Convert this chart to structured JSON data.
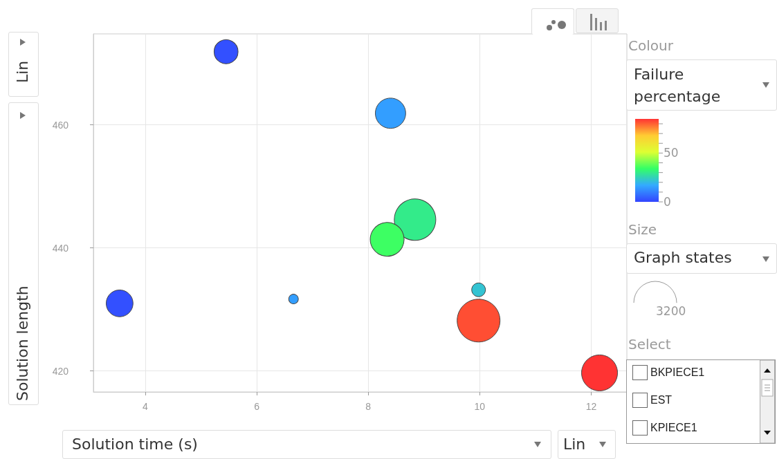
{
  "chart_data": {
    "type": "bubble",
    "xlabel": "Solution time (s)",
    "ylabel": "Solution length",
    "clabel": "Failure percentage",
    "x": [
      5.45,
      8.4,
      8.84,
      8.34,
      9.98,
      9.98,
      12.15,
      3.54,
      6.66
    ],
    "values": [
      471.9,
      461.9,
      444.6,
      441.4,
      433.2,
      428.2,
      419.7,
      431.0,
      431.7
    ],
    "sizes": [
      1000,
      1600,
      3000,
      2000,
      330,
      3200,
      2250,
      1250,
      160
    ],
    "cvalues": [
      2,
      15,
      30,
      35,
      22,
      82,
      85,
      2,
      15
    ],
    "size_legend": [
      3200
    ],
    "clim": [
      0,
      85
    ],
    "cticks": [
      0,
      {
        "value": 10,
        "label": null
      },
      {
        "value": 20,
        "label": null
      },
      {
        "value": 30,
        "label": null
      },
      {
        "value": 40,
        "label": null
      },
      50,
      {
        "value": 60,
        "label": null
      },
      {
        "value": 70,
        "label": null
      },
      {
        "value": 80,
        "label": null
      }
    ],
    "xlim": [
      3.07,
      12.64
    ],
    "xticks": [
      4,
      6,
      8,
      10,
      12
    ],
    "ylim": [
      416.6,
      474.8
    ],
    "yticks": [
      420,
      440,
      460
    ],
    "grid": true,
    "annotations": [
      "Lin",
      "Lin",
      "Colour",
      "Size",
      "Graph states",
      "Select",
      "BKPIECE1",
      "EST",
      "KPIECE1"
    ]
  }
}
